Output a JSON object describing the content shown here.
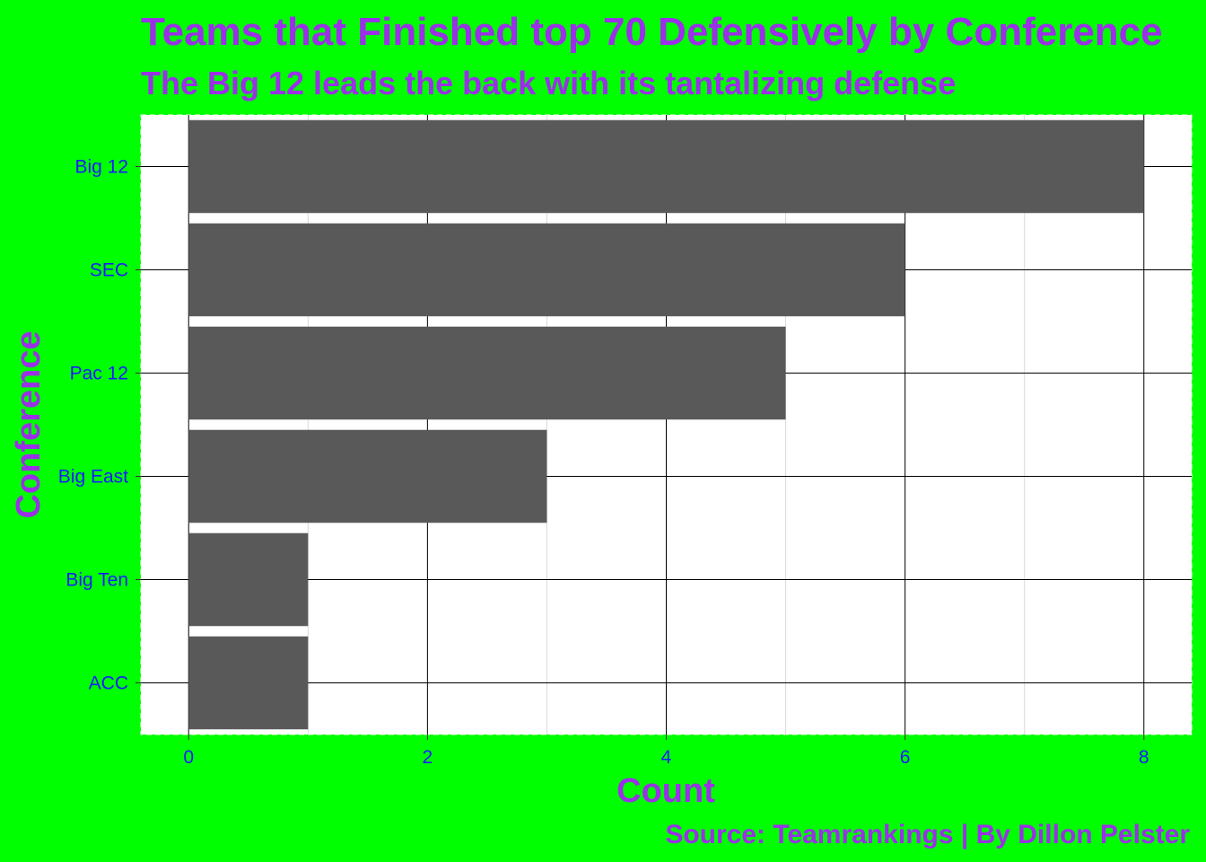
{
  "chart_data": {
    "type": "bar",
    "orientation": "horizontal",
    "title": "Teams that Finished top 70 Defensively by Conference",
    "subtitle": "The Big 12 leads the back with its tantalizing defense",
    "xlabel": "Count",
    "ylabel": "Conference",
    "caption": "Source: Teamrankings | By Dillon Pelster",
    "categories": [
      "Big 12",
      "SEC",
      "Pac 12",
      "Big East",
      "Big Ten",
      "ACC"
    ],
    "values": [
      8,
      6,
      5,
      3,
      1,
      1
    ],
    "xticks": [
      "0",
      "2",
      "4",
      "6",
      "8"
    ],
    "xlim": [
      -0.4,
      8.4
    ],
    "grid": true,
    "legend": "none",
    "colors": {
      "background": "#00ff00",
      "panel": "#ffffff",
      "bar": "#595959",
      "title": "#9b30e8",
      "tick_label": "#1a1aff",
      "grid_major": "#000000",
      "grid_minor": "#d9d9d9"
    }
  }
}
